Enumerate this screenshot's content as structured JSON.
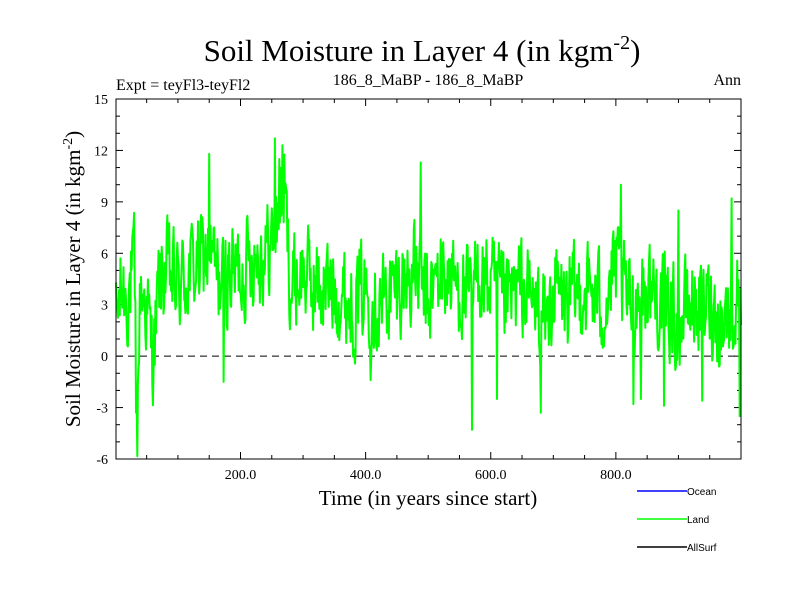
{
  "chart_data": {
    "type": "line",
    "title": "Soil Moisture in Layer 4 (in kgm",
    "title_sup": "-2",
    "title_end": ")",
    "subtitle_left": "Expt = teyFl3-teyFl2",
    "subtitle_center": "186_8_MaBP - 186_8_MaBP",
    "subtitle_right": "Ann",
    "xlabel": "Time (in years since start)",
    "ylabel": "Soil Moisture in Layer 4 (in kgm",
    "ylabel_sup": "-2",
    "ylabel_end": ")",
    "xlim": [
      1,
      1000
    ],
    "ylim": [
      -6,
      15
    ],
    "xticks": [
      200,
      400,
      600,
      800
    ],
    "xtick_labels": [
      "200.0",
      "400.0",
      "600.0",
      "800.0"
    ],
    "yticks": [
      -6,
      -3,
      0,
      3,
      6,
      9,
      12,
      15
    ],
    "ytick_labels": [
      "-6",
      "-3",
      "0",
      "3",
      "6",
      "9",
      "12",
      "15"
    ],
    "reference_line": 0,
    "legend_position": "bottom-right",
    "series": [
      {
        "name": "Ocean",
        "color": "#0000ff",
        "values": []
      },
      {
        "name": "Land",
        "color": "#00ff00",
        "anchors_x": [
          1,
          10,
          20,
          30,
          35,
          40,
          50,
          60,
          70,
          80,
          100,
          120,
          150,
          170,
          180,
          200,
          220,
          240,
          255,
          262,
          270,
          280,
          300,
          320,
          350,
          380,
          400,
          420,
          450,
          480,
          500,
          520,
          550,
          570,
          580,
          600,
          620,
          650,
          670,
          690,
          700,
          720,
          750,
          780,
          800,
          820,
          850,
          880,
          900,
          920,
          950,
          970,
          990,
          1000
        ],
        "anchors_y": [
          2,
          4,
          3.5,
          5,
          -3.5,
          4,
          3,
          0,
          4,
          5,
          4,
          5,
          6,
          4,
          5,
          5,
          6,
          6,
          7,
          9,
          10,
          4,
          5,
          4,
          4,
          3,
          4,
          3,
          4,
          5,
          3,
          5,
          4,
          3,
          5,
          4,
          3,
          4,
          3,
          2,
          4,
          3,
          4,
          3,
          5,
          3,
          4,
          3,
          2,
          3,
          3,
          2,
          3,
          4
        ],
        "extremes_x": [
          33,
          150,
          173,
          255,
          262,
          267,
          408,
          488,
          570,
          610,
          680,
          808,
          828,
          840,
          877,
          900,
          938,
          985,
          998
        ],
        "extremes_y": [
          -3.3,
          11.8,
          -1.5,
          12.7,
          11.5,
          12.3,
          -1.4,
          11.3,
          -4.3,
          -2.5,
          -3.3,
          10,
          -2.8,
          -2.5,
          -2.9,
          8.5,
          -2.6,
          9.2,
          -3.5
        ]
      },
      {
        "name": "AllSurf",
        "color": "#000000",
        "values": []
      }
    ]
  }
}
